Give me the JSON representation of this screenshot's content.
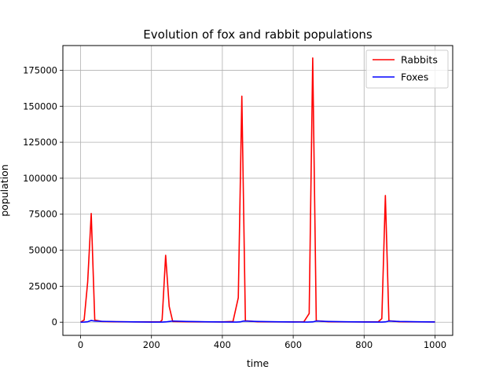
{
  "chart_data": {
    "type": "line",
    "title": "Evolution of fox and rabbit populations",
    "xlabel": "time",
    "ylabel": "population",
    "xlim": [
      -50,
      1050
    ],
    "ylim": [
      -9150,
      192150
    ],
    "xticks": [
      0,
      200,
      400,
      600,
      800,
      1000
    ],
    "xtick_labels": [
      "0",
      "200",
      "400",
      "600",
      "800",
      "1000"
    ],
    "yticks": [
      0,
      25000,
      50000,
      75000,
      100000,
      125000,
      150000,
      175000
    ],
    "ytick_labels": [
      "0",
      "25000",
      "50000",
      "75000",
      "100000",
      "125000",
      "150000",
      "175000"
    ],
    "grid": true,
    "legend_position": "top-right",
    "series": [
      {
        "name": "Rabbits",
        "color": "#ff0000",
        "x": [
          0,
          10,
          20,
          30,
          40,
          60,
          100,
          150,
          200,
          225,
          230,
          240,
          250,
          260,
          300,
          350,
          400,
          430,
          445,
          455,
          465,
          500,
          550,
          600,
          630,
          645,
          655,
          665,
          700,
          750,
          800,
          840,
          850,
          860,
          870,
          900,
          950,
          1000
        ],
        "values": [
          0,
          1500,
          28000,
          75500,
          1500,
          500,
          300,
          200,
          200,
          300,
          1500,
          46500,
          11000,
          500,
          300,
          200,
          200,
          500,
          17000,
          157000,
          1000,
          300,
          200,
          200,
          300,
          6000,
          183500,
          1000,
          300,
          200,
          200,
          300,
          2500,
          88000,
          1000,
          300,
          200,
          200
        ]
      },
      {
        "name": "Foxes",
        "color": "#0000ff",
        "x": [
          0,
          10,
          20,
          30,
          40,
          60,
          100,
          150,
          200,
          230,
          240,
          250,
          260,
          300,
          350,
          400,
          440,
          450,
          460,
          500,
          550,
          600,
          640,
          655,
          665,
          700,
          750,
          800,
          850,
          860,
          870,
          900,
          950,
          1000
        ],
        "values": [
          0,
          100,
          300,
          1200,
          800,
          600,
          400,
          200,
          100,
          100,
          200,
          500,
          800,
          500,
          300,
          150,
          100,
          200,
          800,
          500,
          300,
          150,
          100,
          200,
          800,
          500,
          300,
          150,
          100,
          200,
          800,
          500,
          300,
          150
        ]
      }
    ]
  }
}
